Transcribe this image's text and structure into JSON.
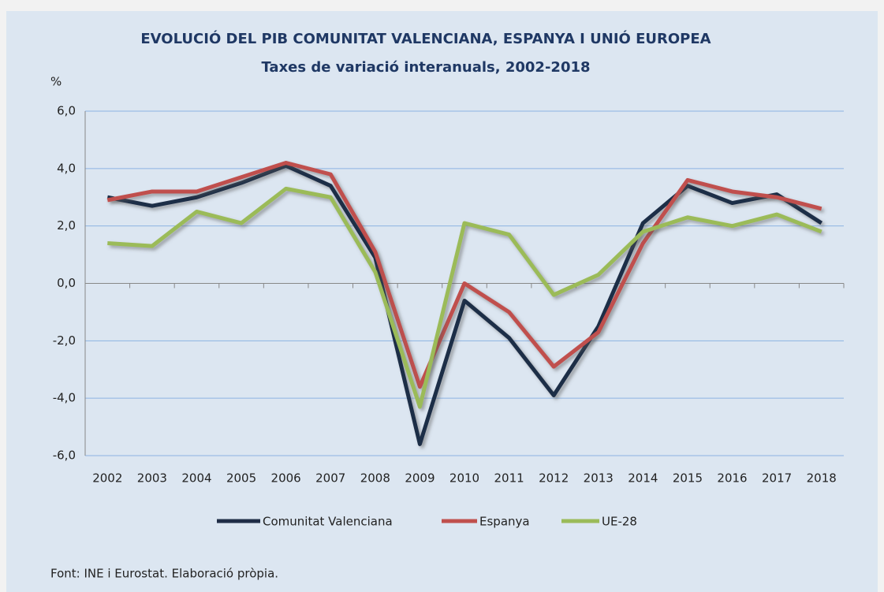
{
  "chart_data": {
    "type": "line",
    "title": "EVOLUCIÓ DEL PIB COMUNITAT VALENCIANA, ESPANYA I UNIÓ EUROPEA",
    "subtitle": "Taxes de variació interanuals, 2002-2018",
    "y_label": "%",
    "source": "Font: INE i Eurostat. Elaboració pròpia.",
    "categories": [
      "2002",
      "2003",
      "2004",
      "2005",
      "2006",
      "2007",
      "2008",
      "2009",
      "2010",
      "2011",
      "2012",
      "2013",
      "2014",
      "2015",
      "2016",
      "2017",
      "2018"
    ],
    "series": [
      {
        "name": "Comunitat Valenciana",
        "color": "#1f2d47",
        "values": [
          3.0,
          2.7,
          3.0,
          3.5,
          4.1,
          3.4,
          0.9,
          -5.6,
          -0.6,
          -1.9,
          -3.9,
          -1.5,
          2.1,
          3.4,
          2.8,
          3.1,
          2.1
        ]
      },
      {
        "name": "Espanya",
        "color": "#c0504d",
        "values": [
          2.9,
          3.2,
          3.2,
          3.7,
          4.2,
          3.8,
          1.1,
          -3.6,
          0.0,
          -1.0,
          -2.9,
          -1.7,
          1.4,
          3.6,
          3.2,
          3.0,
          2.6
        ]
      },
      {
        "name": "UE-28",
        "color": "#9bbb59",
        "values": [
          1.4,
          1.3,
          2.5,
          2.1,
          3.3,
          3.0,
          0.4,
          -4.3,
          2.1,
          1.7,
          -0.4,
          0.3,
          1.8,
          2.3,
          2.0,
          2.4,
          1.8
        ]
      }
    ],
    "ylim": [
      -6,
      6
    ],
    "yticks": [
      {
        "value": -6,
        "label": "-6,0"
      },
      {
        "value": -4,
        "label": "-4,0"
      },
      {
        "value": -2,
        "label": "-2,0"
      },
      {
        "value": 0,
        "label": "0,0"
      },
      {
        "value": 2,
        "label": "2,0"
      },
      {
        "value": 4,
        "label": "4,0"
      },
      {
        "value": 6,
        "label": "6,0"
      }
    ],
    "grid": true,
    "legend": "bottom"
  }
}
